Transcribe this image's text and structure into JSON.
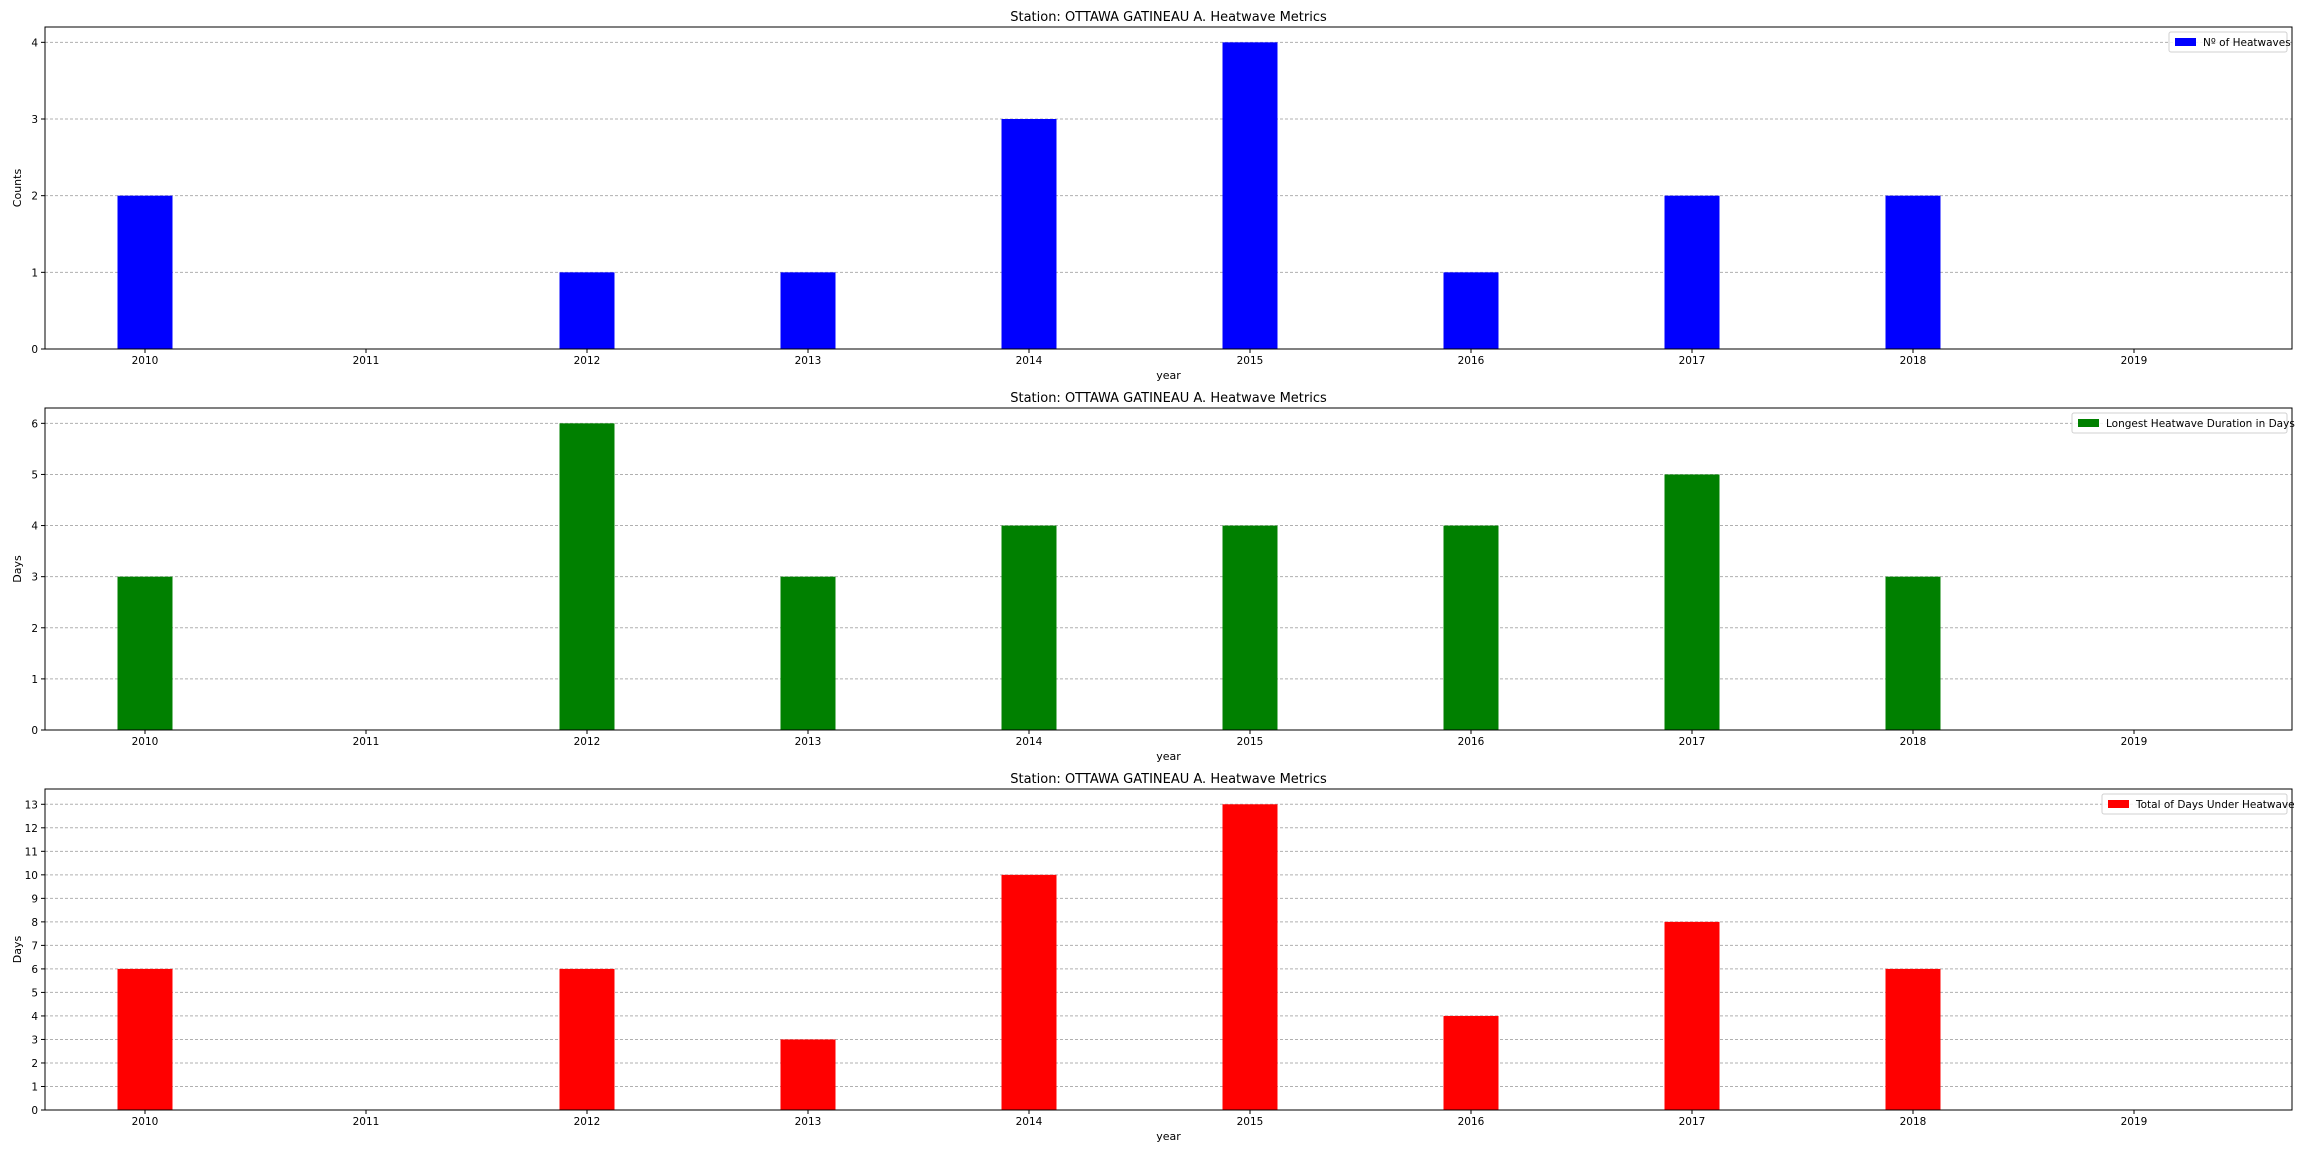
{
  "chart_data": [
    {
      "type": "bar",
      "title": "Station: OTTAWA GATINEAU A. Heatwave Metrics",
      "xlabel": "year",
      "ylabel": "Counts",
      "categories": [
        "2010",
        "2011",
        "2012",
        "2013",
        "2014",
        "2015",
        "2016",
        "2017",
        "2018",
        "2019"
      ],
      "series": [
        {
          "name": "Nº of Heatwaves",
          "color": "#0000ff",
          "values": [
            2,
            0,
            1,
            1,
            3,
            4,
            1,
            2,
            2,
            0
          ]
        }
      ],
      "ylim": [
        0,
        4.2
      ],
      "yticks": [
        0,
        1,
        2,
        3,
        4
      ],
      "grid": true,
      "legend_position": "top-right"
    },
    {
      "type": "bar",
      "title": "Station: OTTAWA GATINEAU A. Heatwave Metrics",
      "xlabel": "year",
      "ylabel": "Days",
      "categories": [
        "2010",
        "2011",
        "2012",
        "2013",
        "2014",
        "2015",
        "2016",
        "2017",
        "2018",
        "2019"
      ],
      "series": [
        {
          "name": "Longest Heatwave Duration in Days",
          "color": "#008000",
          "values": [
            3,
            0,
            6,
            3,
            4,
            4,
            4,
            5,
            3,
            0
          ]
        }
      ],
      "ylim": [
        0,
        6.3
      ],
      "yticks": [
        0,
        1,
        2,
        3,
        4,
        5,
        6
      ],
      "grid": true,
      "legend_position": "top-right"
    },
    {
      "type": "bar",
      "title": "Station: OTTAWA GATINEAU A. Heatwave Metrics",
      "xlabel": "year",
      "ylabel": "Days",
      "categories": [
        "2010",
        "2011",
        "2012",
        "2013",
        "2014",
        "2015",
        "2016",
        "2017",
        "2018",
        "2019"
      ],
      "series": [
        {
          "name": "Total of Days Under Heatwave",
          "color": "#ff0000",
          "values": [
            6,
            0,
            6,
            3,
            10,
            13,
            4,
            8,
            6,
            0
          ]
        }
      ],
      "ylim": [
        0,
        13.65
      ],
      "yticks": [
        0,
        1,
        2,
        3,
        4,
        5,
        6,
        7,
        8,
        9,
        10,
        11,
        12,
        13
      ],
      "grid": true,
      "legend_position": "top-right"
    }
  ]
}
